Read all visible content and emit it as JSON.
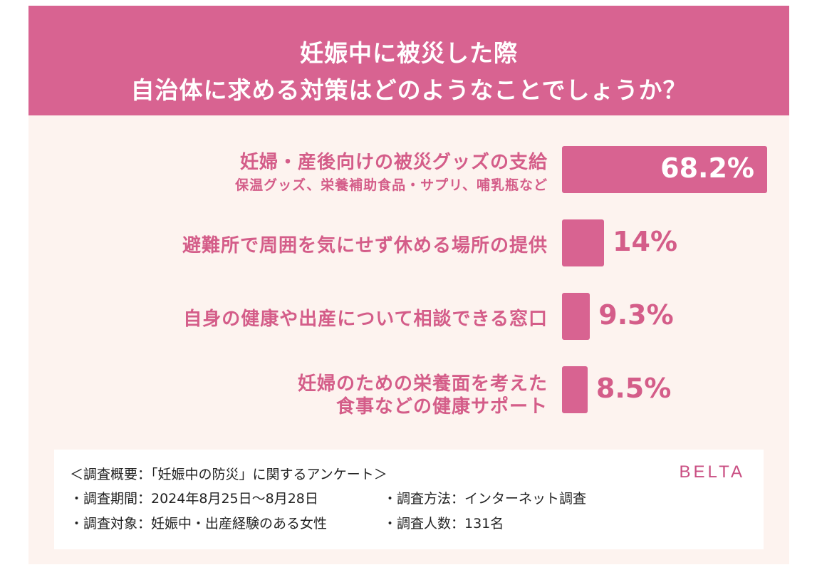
{
  "title_line1": "妊娠中に被災した際",
  "title_line2": "自治体に求める対策はどのようなことでしょうか？",
  "chart_data": {
    "type": "bar",
    "orientation": "horizontal",
    "categories": [
      {
        "line1": "妊婦・産後向けの被災グッズの支給",
        "line2": "保温グッズ、栄養補助食品・サプリ、哺乳瓶など"
      },
      {
        "line1": "避難所で周囲を気にせず休める場所の提供",
        "line2": ""
      },
      {
        "line1": "自身の健康や出産について相談できる窓口",
        "line2": ""
      },
      {
        "line1": "妊婦のための栄養面を考えた",
        "line2": "食事などの健康サポート"
      }
    ],
    "values": [
      68.2,
      14,
      9.3,
      8.5
    ],
    "value_labels": [
      "68.2%",
      "14%",
      "9.3%",
      "8.5%"
    ],
    "bar_color": "#d86391",
    "xlim": [
      0,
      68.2
    ]
  },
  "footer": {
    "heading": "＜調査概要：「妊娠中の防災」に関するアンケート＞",
    "period": "・調査期間：2024年8月25日〜8月28日",
    "method": "・調査方法：インターネット調査",
    "target": "・調査対象：妊娠中・出産経験のある女性",
    "count": "・調査人数：131名",
    "logo": "BELTA"
  }
}
